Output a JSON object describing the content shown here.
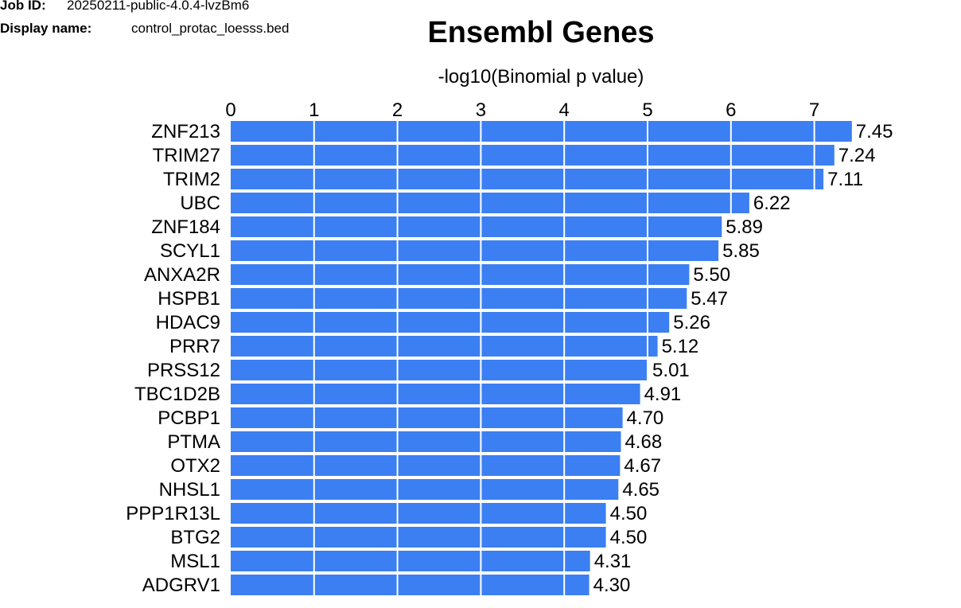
{
  "job": {
    "id_label": "Job ID:",
    "id_value": "20250211-public-4.0.4-lvzBm6"
  },
  "display": {
    "name_label": "Display name:",
    "name_value": "control_protac_loesss.bed"
  },
  "chart_data": {
    "type": "bar",
    "orientation": "horizontal",
    "title": "Ensembl Genes",
    "xlabel": "-log10(Binomial p value)",
    "ylabel": "",
    "xlim": [
      0,
      7.45
    ],
    "xticks": [
      0,
      1,
      2,
      3,
      4,
      5,
      6,
      7
    ],
    "grid": true,
    "categories": [
      "ZNF213",
      "TRIM27",
      "TRIM2",
      "UBC",
      "ZNF184",
      "SCYL1",
      "ANXA2R",
      "HSPB1",
      "HDAC9",
      "PRR7",
      "PRSS12",
      "TBC1D2B",
      "PCBP1",
      "PTMA",
      "OTX2",
      "NHSL1",
      "PPP1R13L",
      "BTG2",
      "MSL1",
      "ADGRV1"
    ],
    "values": [
      7.45,
      7.24,
      7.11,
      6.22,
      5.89,
      5.85,
      5.5,
      5.47,
      5.26,
      5.12,
      5.01,
      4.91,
      4.7,
      4.68,
      4.67,
      4.65,
      4.5,
      4.5,
      4.31,
      4.3
    ],
    "value_labels": [
      "7.45",
      "7.24",
      "7.11",
      "6.22",
      "5.89",
      "5.85",
      "5.50",
      "5.47",
      "5.26",
      "5.12",
      "5.01",
      "4.91",
      "4.70",
      "4.68",
      "4.67",
      "4.65",
      "4.50",
      "4.50",
      "4.31",
      "4.30"
    ],
    "bar_color": "#3b7ff2",
    "grid_color": "#ffffff"
  }
}
